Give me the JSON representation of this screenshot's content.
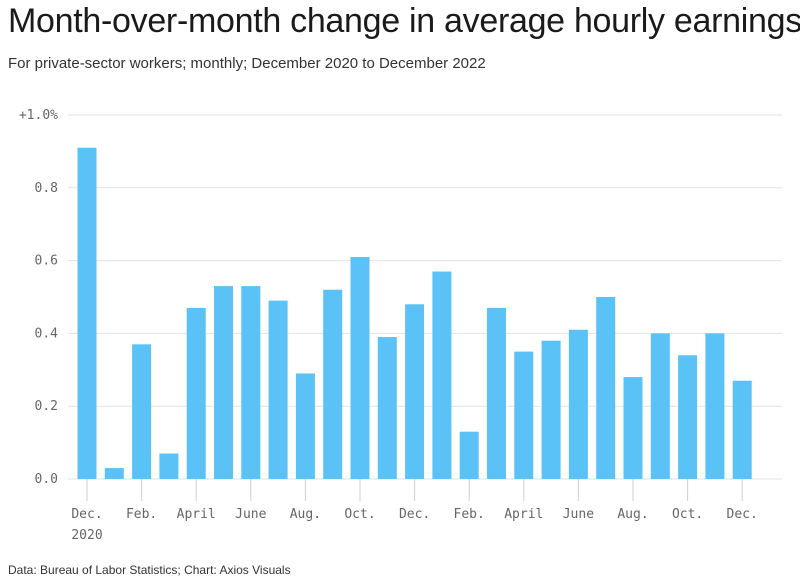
{
  "chart_data": {
    "type": "bar",
    "title": "Month-over-month change in average hourly earnings",
    "subtitle": "For private-sector workers; monthly; December 2020 to December 2022",
    "source": "Data: Bureau of Labor Statistics; Chart: Axios Visuals",
    "ylim": [
      0,
      1.0
    ],
    "y_ticks": [
      {
        "value": 0.0,
        "label": "0.0"
      },
      {
        "value": 0.2,
        "label": "0.2"
      },
      {
        "value": 0.4,
        "label": "0.4"
      },
      {
        "value": 0.6,
        "label": "0.6"
      },
      {
        "value": 0.8,
        "label": "0.8"
      },
      {
        "value": 1.0,
        "label": "+1.0%"
      }
    ],
    "x_ticks": [
      {
        "index": 0,
        "label": "Dec.",
        "sub": "2020"
      },
      {
        "index": 2,
        "label": "Feb."
      },
      {
        "index": 4,
        "label": "April"
      },
      {
        "index": 6,
        "label": "June"
      },
      {
        "index": 8,
        "label": "Aug."
      },
      {
        "index": 10,
        "label": "Oct."
      },
      {
        "index": 12,
        "label": "Dec."
      },
      {
        "index": 14,
        "label": "Feb."
      },
      {
        "index": 16,
        "label": "April"
      },
      {
        "index": 18,
        "label": "June"
      },
      {
        "index": 20,
        "label": "Aug."
      },
      {
        "index": 22,
        "label": "Oct."
      },
      {
        "index": 24,
        "label": "Dec."
      }
    ],
    "values": [
      0.91,
      0.03,
      0.37,
      0.07,
      0.47,
      0.53,
      0.53,
      0.49,
      0.29,
      0.52,
      0.61,
      0.39,
      0.48,
      0.57,
      0.13,
      0.47,
      0.35,
      0.38,
      0.41,
      0.5,
      0.28,
      0.4,
      0.34,
      0.4,
      0.27
    ],
    "bar_color": "#5bc2f7",
    "grid": true
  }
}
